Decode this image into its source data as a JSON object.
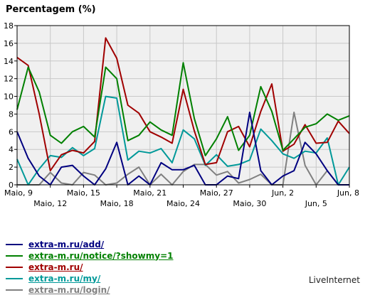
{
  "chart_data": {
    "type": "line",
    "title": "Percentagem (%)",
    "ylim": [
      0,
      18
    ],
    "y_ticks": [
      0,
      2,
      4,
      6,
      8,
      10,
      12,
      14,
      16,
      18
    ],
    "x": [
      "Maio, 9",
      "",
      "",
      "Maio, 12",
      "",
      "",
      "Maio, 15",
      "",
      "",
      "Maio, 18",
      "",
      "",
      "Maio, 21",
      "",
      "",
      "Maio, 24",
      "",
      "",
      "Maio, 27",
      "",
      "",
      "Maio, 30",
      "",
      "",
      "Jun, 2",
      "",
      "",
      "Jun, 5",
      "",
      "",
      "Jun, 8"
    ],
    "x_tick_labels": [
      {
        "i": 0,
        "label": "Maio, 9",
        "row": 1
      },
      {
        "i": 3,
        "label": "Maio, 12",
        "row": 2
      },
      {
        "i": 6,
        "label": "Maio, 15",
        "row": 1
      },
      {
        "i": 9,
        "label": "Maio, 18",
        "row": 2
      },
      {
        "i": 12,
        "label": "Maio, 21",
        "row": 1
      },
      {
        "i": 15,
        "label": "Maio, 24",
        "row": 2
      },
      {
        "i": 18,
        "label": "Maio, 27",
        "row": 1
      },
      {
        "i": 21,
        "label": "Maio, 30",
        "row": 2
      },
      {
        "i": 24,
        "label": "Jun, 2",
        "row": 1
      },
      {
        "i": 27,
        "label": "Jun, 5",
        "row": 2
      },
      {
        "i": 30,
        "label": "Jun, 8",
        "row": 1
      }
    ],
    "grid": true,
    "series": [
      {
        "name": "extra-m.ru/add/",
        "color": "#000080",
        "values": [
          6,
          3,
          1,
          0,
          2,
          2.2,
          1,
          0,
          1.8,
          4.8,
          0,
          1,
          0,
          2.5,
          1.7,
          1.7,
          2.2,
          0,
          0,
          1,
          0.7,
          8.2,
          1.6,
          0,
          1,
          1.6,
          4.8,
          3.5,
          1.6,
          0,
          0
        ]
      },
      {
        "name": "extra-m.ru/notice/?showmy=1",
        "color": "#008000",
        "values": [
          8.5,
          13.3,
          10.5,
          5.6,
          4.7,
          6,
          6.6,
          5.4,
          13.3,
          12,
          5,
          5.6,
          7.1,
          6.2,
          5.6,
          13.8,
          7.5,
          3.3,
          5.2,
          7.7,
          3.9,
          5.6,
          11.1,
          8.3,
          3.9,
          5.2,
          6.5,
          6.9,
          8,
          7.3,
          7.8
        ]
      },
      {
        "name": "extra-m.ru/",
        "color": "#a00000",
        "values": [
          14.4,
          13.5,
          8,
          1.6,
          3.4,
          3.9,
          3.6,
          4.9,
          16.6,
          14.3,
          9,
          8.1,
          6,
          5.4,
          4.7,
          10.8,
          6.1,
          2.3,
          2.5,
          6,
          6.6,
          4.3,
          8.3,
          11.4,
          3.8,
          4.6,
          6.8,
          4.7,
          4.8,
          7.2,
          5.8
        ]
      },
      {
        "name": "extra-m.ru/my/",
        "color": "#009999",
        "values": [
          2.9,
          0,
          1.8,
          3.3,
          3.1,
          4.2,
          3.3,
          4.1,
          10,
          9.8,
          2.8,
          3.8,
          3.6,
          4.1,
          2.5,
          6.2,
          5.2,
          2.2,
          3.4,
          2.1,
          2.3,
          2.8,
          6.3,
          5,
          3.5,
          3,
          3.8,
          3.6,
          5.3,
          0,
          2
        ]
      },
      {
        "name": "extra-m.ru/login/",
        "color": "#808080",
        "values": [
          0,
          0,
          0,
          1.4,
          0.2,
          0,
          1.4,
          1.1,
          0,
          0.2,
          1.2,
          2,
          0,
          1.2,
          0,
          1.5,
          2.3,
          2.3,
          1.1,
          1.5,
          0.2,
          0.6,
          1.2,
          0,
          0,
          8.2,
          2.2,
          0,
          1.6,
          0,
          0
        ]
      }
    ]
  },
  "footer": {
    "brand": "LiveInternet"
  }
}
